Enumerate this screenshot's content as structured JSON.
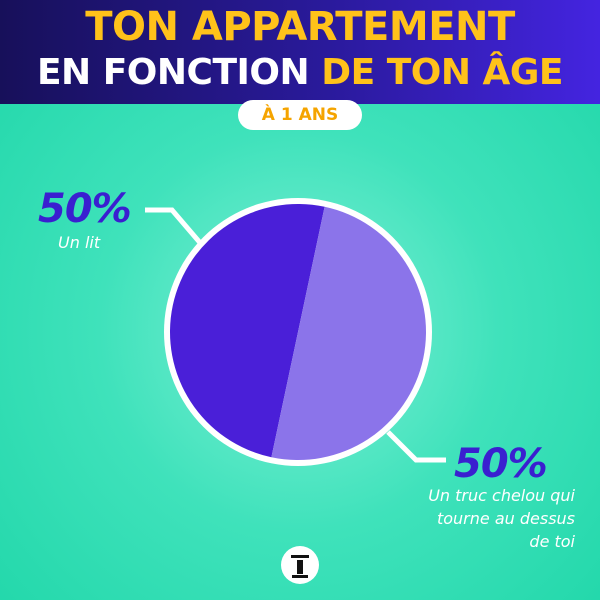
{
  "chart_data": {
    "type": "pie",
    "title": [
      "TON APPARTEMENT",
      "EN FONCTION",
      "DE TON ÂGE"
    ],
    "subtitle": "À 1 ANS",
    "categories": [
      "Un lit",
      "Un truc chelou qui tourne au dessus de toi"
    ],
    "values": [
      50,
      50
    ],
    "value_labels": [
      "50%",
      "50%"
    ],
    "colors": [
      "#4a1fd8",
      "#8b74ea"
    ]
  }
}
